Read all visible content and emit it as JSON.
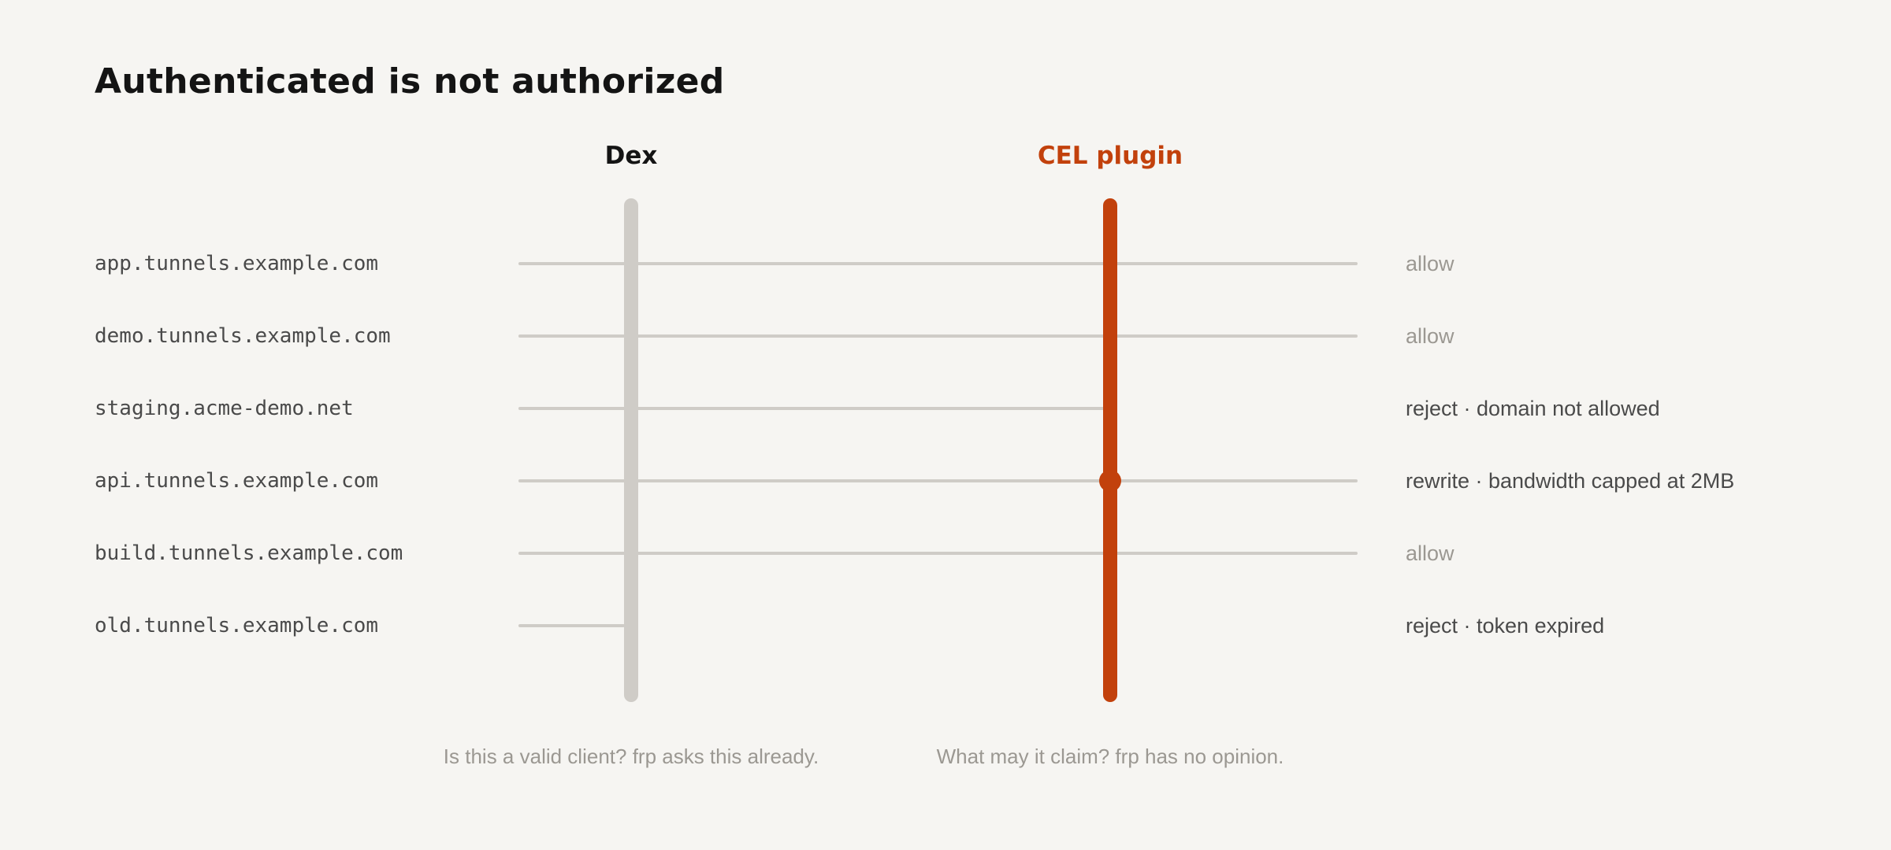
{
  "title": "Authenticated is not authorized",
  "columns": {
    "dex": {
      "label": "Dex",
      "caption": "Is this a valid client? frp asks this already."
    },
    "cel": {
      "label": "CEL plugin",
      "caption": "What may it claim? frp has no opinion."
    }
  },
  "colors": {
    "accent": "#c2410c",
    "line": "#cfccc7",
    "text": "#141414",
    "muted": "#9b9892",
    "background": "#f6f5f2"
  },
  "rows": [
    {
      "host": "app.tunnels.example.com",
      "outcome": "allow",
      "reaches": "end",
      "rewrite": false,
      "emphasis": "muted"
    },
    {
      "host": "demo.tunnels.example.com",
      "outcome": "allow",
      "reaches": "end",
      "rewrite": false,
      "emphasis": "muted"
    },
    {
      "host": "staging.acme-demo.net",
      "outcome": "reject · domain not allowed",
      "reaches": "cel",
      "rewrite": false,
      "emphasis": "strong"
    },
    {
      "host": "api.tunnels.example.com",
      "outcome": "rewrite · bandwidth capped at 2MB",
      "reaches": "end",
      "rewrite": true,
      "emphasis": "strong"
    },
    {
      "host": "build.tunnels.example.com",
      "outcome": "allow",
      "reaches": "end",
      "rewrite": false,
      "emphasis": "muted"
    },
    {
      "host": "old.tunnels.example.com",
      "outcome": "reject · token expired",
      "reaches": "dex",
      "rewrite": false,
      "emphasis": "strong"
    }
  ]
}
